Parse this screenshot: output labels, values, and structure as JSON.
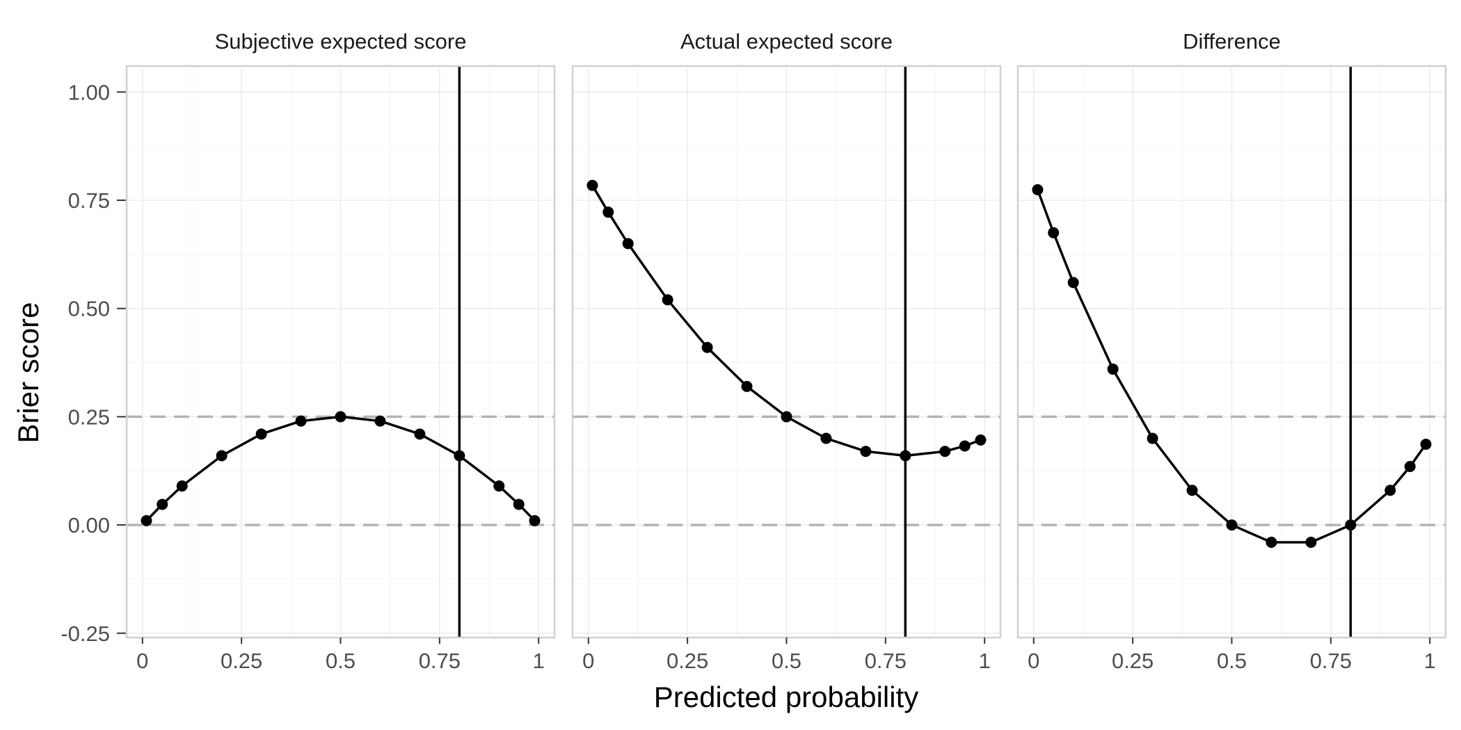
{
  "chart_data": {
    "type": "line",
    "xlabel": "Predicted probability",
    "ylabel": "Brier score",
    "xlim": [
      -0.04,
      1.04
    ],
    "ylim": [
      -0.26,
      1.06
    ],
    "x_ticks": [
      0,
      0.25,
      0.5,
      0.75,
      1
    ],
    "x_tick_labels": [
      "0",
      "0.25",
      "0.5",
      "0.75",
      "1"
    ],
    "y_ticks": [
      -0.25,
      0,
      0.25,
      0.5,
      0.75,
      1
    ],
    "y_tick_labels": [
      "-0.25",
      "0.00",
      "0.25",
      "0.50",
      "0.75",
      "1.00"
    ],
    "reference_hlines": [
      0,
      0.25
    ],
    "reference_vline": 0.8,
    "grid": true,
    "colors": {
      "line": "#000000",
      "ref_dashed": "#b3b3b3",
      "grid": "#ebebeb",
      "border": "#d0d0d0"
    },
    "panels": [
      {
        "title": "Subjective expected score",
        "x": [
          0.01,
          0.05,
          0.1,
          0.2,
          0.3,
          0.4,
          0.5,
          0.6,
          0.7,
          0.8,
          0.9,
          0.95,
          0.99
        ],
        "y": [
          0.0099,
          0.0475,
          0.09,
          0.16,
          0.21,
          0.24,
          0.25,
          0.24,
          0.21,
          0.16,
          0.09,
          0.0475,
          0.0099
        ]
      },
      {
        "title": "Actual expected score",
        "x": [
          0.01,
          0.05,
          0.1,
          0.2,
          0.3,
          0.4,
          0.5,
          0.6,
          0.7,
          0.8,
          0.9,
          0.95,
          0.99
        ],
        "y": [
          0.7843,
          0.7225,
          0.65,
          0.52,
          0.41,
          0.32,
          0.25,
          0.2,
          0.17,
          0.16,
          0.17,
          0.1825,
          0.1963
        ]
      },
      {
        "title": "Difference",
        "x": [
          0.01,
          0.05,
          0.1,
          0.2,
          0.3,
          0.4,
          0.5,
          0.6,
          0.7,
          0.8,
          0.9,
          0.95,
          0.99
        ],
        "y": [
          0.7744,
          0.675,
          0.56,
          0.36,
          0.2,
          0.08,
          0.0,
          -0.04,
          -0.04,
          0.0,
          0.08,
          0.135,
          0.1864
        ]
      }
    ]
  }
}
